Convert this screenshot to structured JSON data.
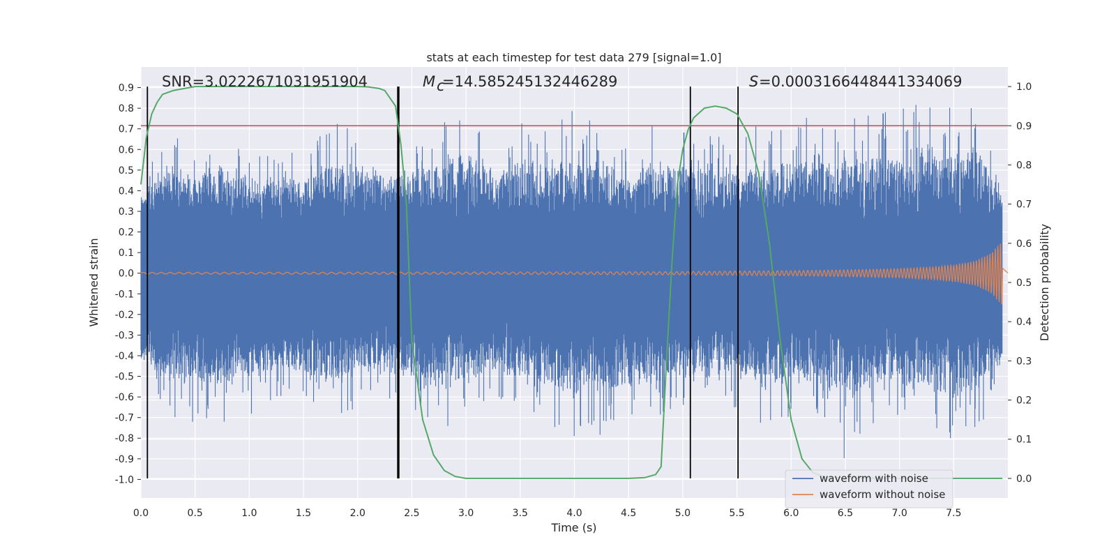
{
  "chart_data": {
    "type": "line",
    "title": "stats at each timestep for test data 279 [signal=1.0]",
    "xlabel": "Time (s)",
    "ylabel": "Whitened strain",
    "y2label": "Detection probability",
    "xlim": [
      0,
      8.0
    ],
    "ylim": [
      -1.09,
      1.0
    ],
    "y2lim": [
      -0.05,
      1.05
    ],
    "x_ticks": [
      "0.0",
      "0.5",
      "1.0",
      "1.5",
      "2.0",
      "2.5",
      "3.0",
      "3.5",
      "4.0",
      "4.5",
      "5.0",
      "5.5",
      "6.0",
      "6.5",
      "7.0",
      "7.5"
    ],
    "y_ticks": [
      "0.9",
      "0.8",
      "0.7",
      "0.6",
      "0.5",
      "0.4",
      "0.3",
      "0.2",
      "0.1",
      "0.0",
      "-0.1",
      "-0.2",
      "-0.3",
      "-0.4",
      "-0.5",
      "-0.6",
      "-0.7",
      "-0.8",
      "-0.9",
      "-1.0"
    ],
    "y2_ticks": [
      "1.0",
      "0.9",
      "0.8",
      "0.7",
      "0.6",
      "0.5",
      "0.4",
      "0.3",
      "0.2",
      "0.1",
      "0.0"
    ],
    "grid": true,
    "legend_position": "bottom-right",
    "annotations": {
      "snr": "SNR=3.0222671031951904",
      "mc": "=14.585245132446289",
      "s": "=0.0003166448441334069"
    },
    "threshold_y2": 0.9,
    "vertical_lines_x": [
      0.06,
      2.37,
      2.38,
      5.07,
      5.51
    ],
    "series": [
      {
        "name": "waveform with noise",
        "color": "#4c72b0",
        "description_points": {
          "x": [
            0.0,
            0.25,
            0.5,
            0.75,
            1.0,
            1.25,
            1.5,
            1.75,
            2.0,
            2.25,
            2.5,
            2.75,
            3.0,
            3.25,
            3.5,
            3.75,
            4.0,
            4.25,
            4.5,
            4.75,
            5.0,
            5.25,
            5.5,
            5.75,
            6.0,
            6.25,
            6.5,
            6.75,
            7.0,
            7.25,
            7.5,
            7.75,
            7.95
          ],
          "upper": [
            0.45,
            0.7,
            0.6,
            0.72,
            0.55,
            0.6,
            0.6,
            0.75,
            0.7,
            0.62,
            0.65,
            0.72,
            0.85,
            0.65,
            0.75,
            0.7,
            0.8,
            0.7,
            0.6,
            0.75,
            0.7,
            0.72,
            0.65,
            0.75,
            0.7,
            0.8,
            0.72,
            0.85,
            0.8,
            0.9,
            0.82,
            0.85,
            0.4
          ],
          "lower": [
            -0.55,
            -0.7,
            -0.75,
            -0.75,
            -0.7,
            -0.6,
            -0.65,
            -0.75,
            -0.65,
            -0.6,
            -0.65,
            -0.8,
            -0.7,
            -0.6,
            -0.7,
            -0.75,
            -0.85,
            -0.8,
            -0.75,
            -0.7,
            -0.65,
            -0.7,
            -0.65,
            -0.75,
            -0.7,
            -0.7,
            -0.92,
            -0.75,
            -0.7,
            -0.8,
            -0.88,
            -0.75,
            -0.5
          ]
        }
      },
      {
        "name": "waveform without noise",
        "color": "#dd8452",
        "envelope": {
          "x": [
            0.0,
            2.0,
            4.0,
            5.0,
            6.0,
            6.5,
            7.0,
            7.3,
            7.5,
            7.7,
            7.85,
            7.95
          ],
          "amp": [
            0.004,
            0.005,
            0.006,
            0.008,
            0.012,
            0.016,
            0.022,
            0.03,
            0.04,
            0.06,
            0.1,
            0.16
          ]
        }
      },
      {
        "name": "detection probability",
        "color": "#55a868",
        "axis": "y2",
        "x": [
          0.0,
          0.05,
          0.1,
          0.15,
          0.2,
          0.3,
          0.4,
          0.5,
          0.7,
          1.0,
          1.5,
          2.0,
          2.1,
          2.2,
          2.25,
          2.3,
          2.35,
          2.4,
          2.45,
          2.5,
          2.6,
          2.7,
          2.8,
          2.9,
          3.0,
          3.2,
          3.5,
          4.0,
          4.5,
          4.65,
          4.75,
          4.8,
          4.85,
          4.9,
          4.95,
          5.0,
          5.05,
          5.1,
          5.2,
          5.3,
          5.4,
          5.5,
          5.6,
          5.7,
          5.8,
          5.9,
          6.0,
          6.1,
          6.2,
          6.3,
          6.5,
          7.0,
          7.5,
          7.95
        ],
        "y": [
          0.75,
          0.87,
          0.93,
          0.96,
          0.98,
          0.99,
          0.995,
          1.0,
          1.0,
          1.0,
          1.0,
          1.0,
          0.999,
          0.995,
          0.99,
          0.97,
          0.95,
          0.85,
          0.7,
          0.35,
          0.15,
          0.06,
          0.02,
          0.005,
          0.0,
          0.0,
          0.0,
          0.0,
          0.0,
          0.002,
          0.01,
          0.03,
          0.3,
          0.55,
          0.75,
          0.84,
          0.89,
          0.92,
          0.945,
          0.95,
          0.945,
          0.93,
          0.88,
          0.78,
          0.6,
          0.35,
          0.15,
          0.05,
          0.015,
          0.004,
          0.001,
          0.0,
          0.0,
          0.0
        ]
      }
    ]
  }
}
